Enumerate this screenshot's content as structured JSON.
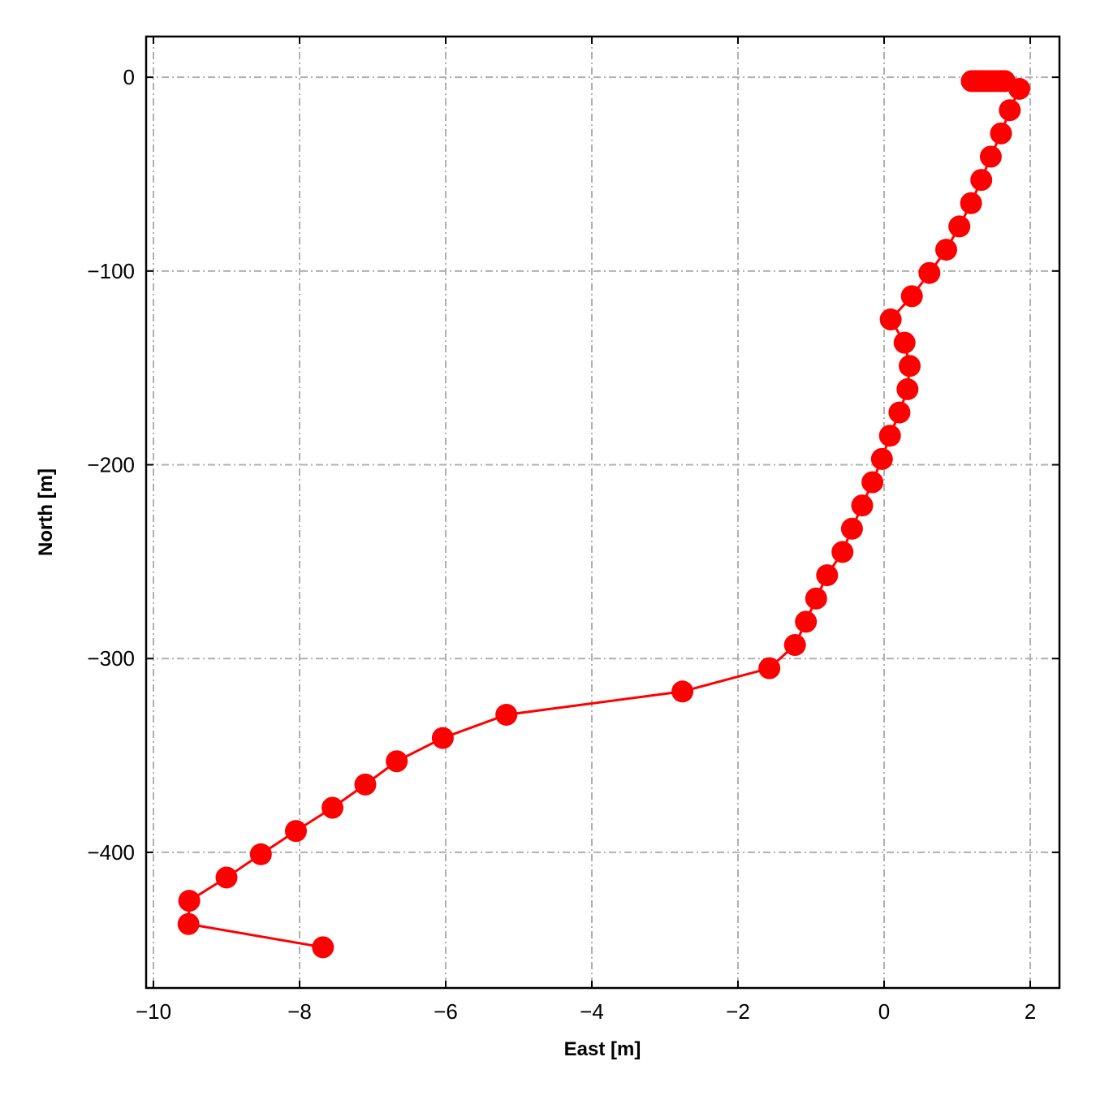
{
  "chart_data": {
    "type": "line",
    "title": "",
    "xlabel": "East [m]",
    "ylabel": "North [m]",
    "xlim": [
      -10.1,
      2.4
    ],
    "ylim": [
      -470,
      21
    ],
    "xticks": [
      -10,
      -8,
      -6,
      -4,
      -2,
      0,
      2
    ],
    "yticks": [
      0,
      -100,
      -200,
      -300,
      -400
    ],
    "xtick_labels": [
      "−10",
      "−8",
      "−6",
      "−4",
      "−2",
      "0",
      "2"
    ],
    "ytick_labels": [
      "0",
      "−100",
      "−200",
      "−300",
      "−400"
    ],
    "grid": true,
    "grid_style": "dash-dot",
    "legend": "none",
    "series": [
      {
        "color": "#ff0000",
        "marker": "circle",
        "x": [
          1.2,
          1.25,
          1.3,
          1.35,
          1.4,
          1.45,
          1.5,
          1.55,
          1.6,
          1.65,
          1.85,
          1.72,
          1.6,
          1.46,
          1.33,
          1.19,
          1.03,
          0.85,
          0.62,
          0.38,
          0.09,
          0.28,
          0.35,
          0.32,
          0.21,
          0.08,
          -0.03,
          -0.16,
          -0.3,
          -0.44,
          -0.57,
          -0.78,
          -0.93,
          -1.07,
          -1.22,
          -1.57,
          -2.76,
          -5.17,
          -6.04,
          -6.67,
          -7.1,
          -7.55,
          -8.05,
          -8.53,
          -9.0,
          -9.51,
          -9.52,
          -7.68
        ],
        "y": [
          -2,
          -2,
          -2,
          -2,
          -2,
          -2,
          -2,
          -2,
          -2,
          -2,
          -6,
          -17,
          -29,
          -41,
          -53,
          -65,
          -77,
          -89,
          -101,
          -113,
          -125,
          -137,
          -149,
          -161,
          -173,
          -185,
          -197,
          -209,
          -221,
          -233,
          -245,
          -257,
          -269,
          -281,
          -293,
          -305,
          -317,
          -329,
          -341,
          -353,
          -365,
          -377,
          -389,
          -401,
          -413,
          -425,
          -437,
          -449
        ]
      }
    ]
  }
}
